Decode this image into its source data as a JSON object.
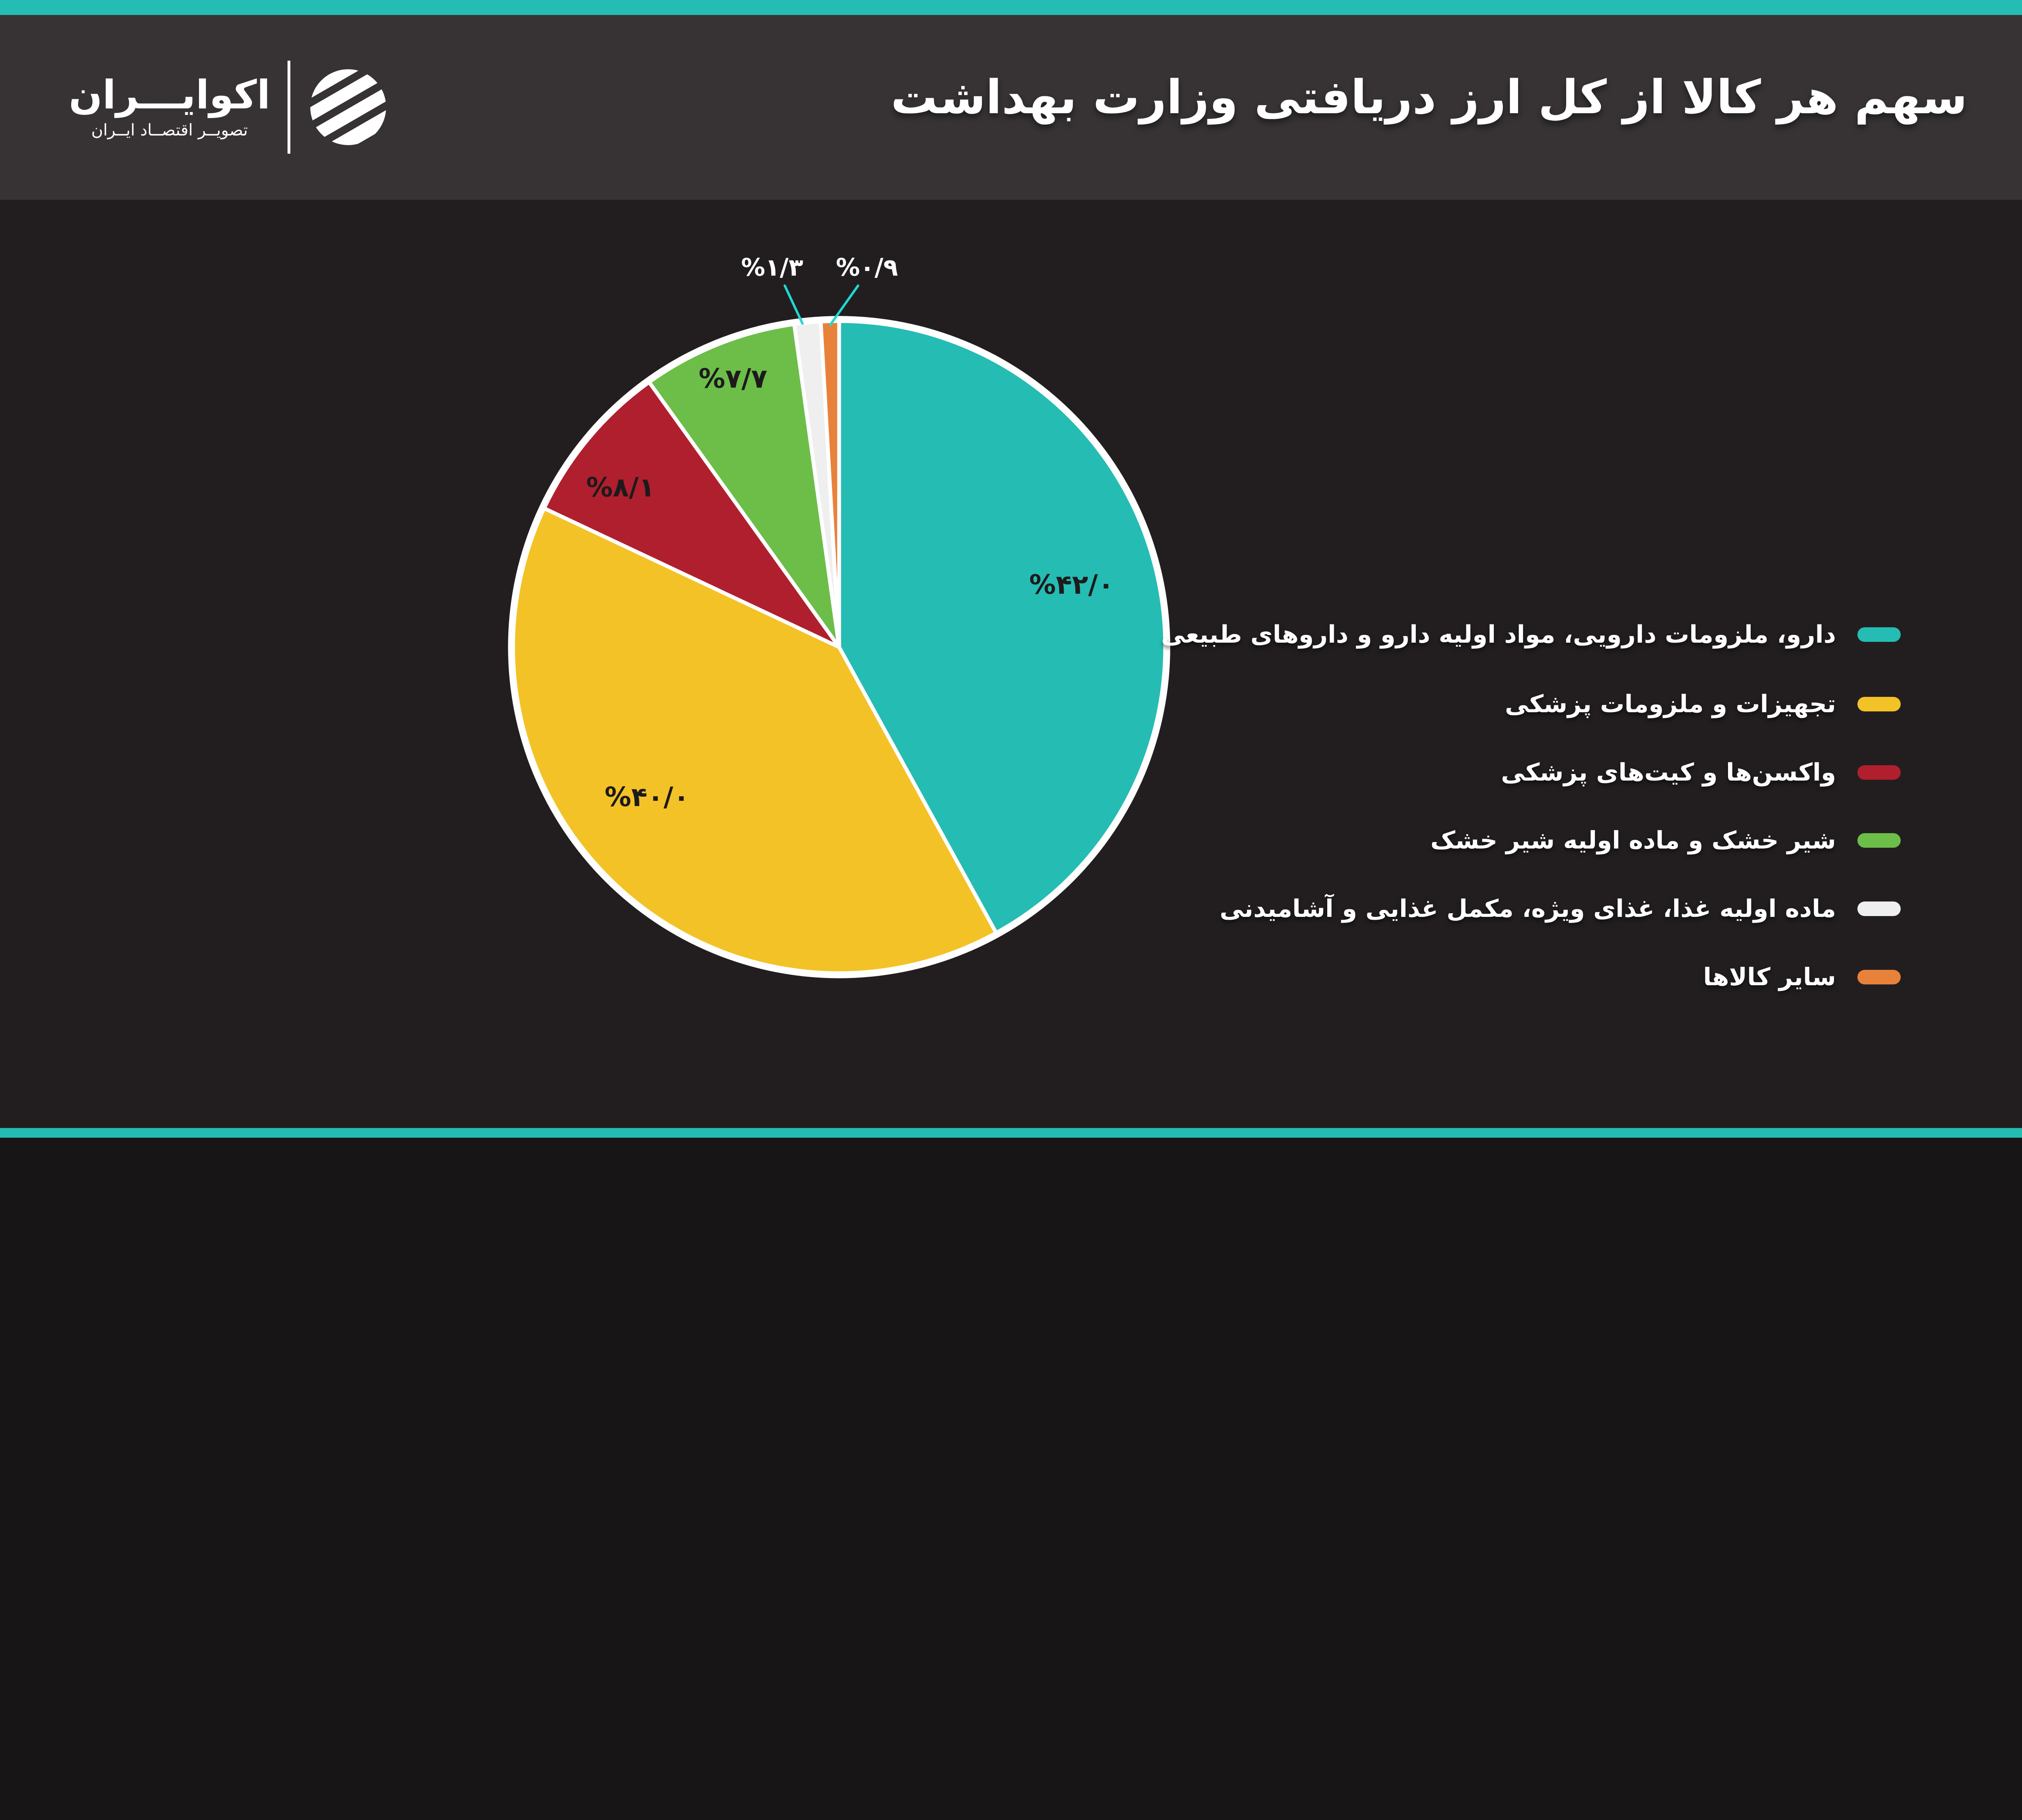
{
  "header": {
    "title": "سهم هر کالا از کل ارز دریافتی وزارت بهداشت",
    "logo": {
      "name": "اکوایـــران",
      "tagline": "تصویــر اقتصــاد ایــران"
    }
  },
  "chart_data": {
    "type": "pie",
    "title": "سهم هر کالا از کل ارز دریافتی وزارت بهداشت",
    "unit": "percent",
    "start_angle_deg": 0,
    "direction": "clockwise",
    "legend_position": "right",
    "slices": [
      {
        "label": "دارو، ملزومات دارویی، مواد اولیه دارو و داروهای طبیعی",
        "value": 42.0,
        "pct_label": "%۴۲/۰",
        "color": "#25BCB3",
        "label_placement": "inside"
      },
      {
        "label": "تجهیزات و ملزومات پزشکی",
        "value": 40.0,
        "pct_label": "%۴۰/۰",
        "color": "#F3C227",
        "label_placement": "inside"
      },
      {
        "label": "واکسن‌ها و کیت‌های پزشکی",
        "value": 8.1,
        "pct_label": "%۸/۱",
        "color": "#B01F2E",
        "label_placement": "inside"
      },
      {
        "label": "شیر خشک و ماده اولیه شیر خشک",
        "value": 7.7,
        "pct_label": "%۷/۷",
        "color": "#6CBE49",
        "label_placement": "inside"
      },
      {
        "label": "ماده اولیه غذا، غذای ویژه، مکمل غذایی و آشامیدنی",
        "value": 1.3,
        "pct_label": "%۱/۳",
        "color": "#F0EFEF",
        "label_placement": "callout"
      },
      {
        "label": "سایر کالاها",
        "value": 0.9,
        "pct_label": "%۰/۹",
        "color": "#E8823B",
        "label_placement": "callout"
      }
    ]
  },
  "colors": {
    "background": "#221E1F",
    "header_bg": "#373334",
    "accent_strip": "#25BCB3",
    "pie_border": "#FFFFFF",
    "inside_label_text": "#1E1A1B",
    "callout_label_text": "#FFFFFF",
    "leader_line": "#1ED9D2"
  }
}
